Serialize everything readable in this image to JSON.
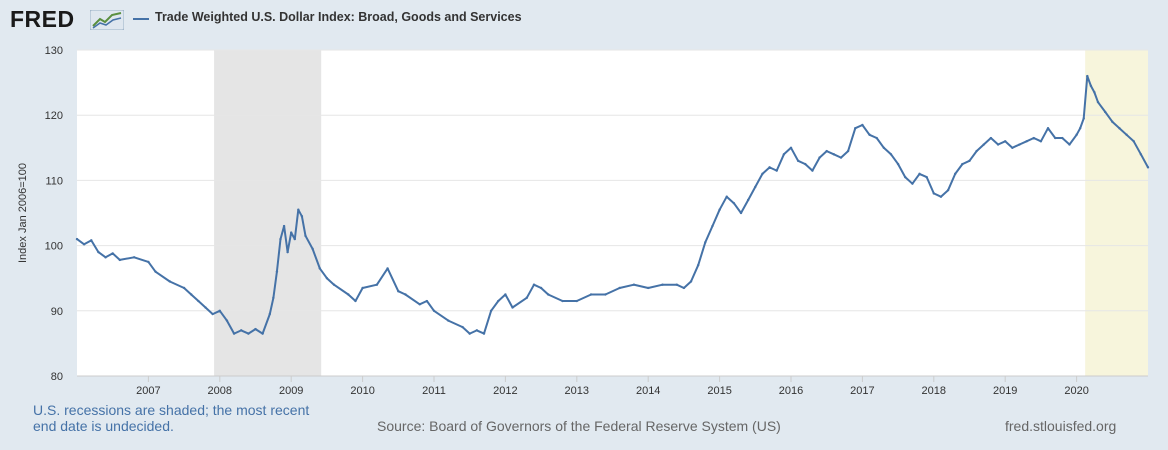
{
  "header": {
    "logo_text": "FRED",
    "logo_icon": "fred-graph-icon",
    "legend_label": "Trade Weighted U.S. Dollar Index: Broad, Goods and Services"
  },
  "footer": {
    "recession_note": "U.S. recessions are shaded; the most recent end date is undecided.",
    "source": "Source: Board of Governors of the Federal Reserve System (US)",
    "site": "fred.stlouisfed.org"
  },
  "colors": {
    "series": "#4572a7",
    "background": "#e1e9f0",
    "plot": "#ffffff",
    "recession": "#e5e5e5",
    "recession_recent": "#f7f5dc"
  },
  "chart_data": {
    "type": "line",
    "title": "",
    "xlabel": "",
    "ylabel": "Index Jan 2006=100",
    "xlim": [
      2006.0,
      2021.0
    ],
    "ylim": [
      80,
      130
    ],
    "x_ticks": [
      2007,
      2008,
      2009,
      2010,
      2011,
      2012,
      2013,
      2014,
      2015,
      2016,
      2017,
      2018,
      2019,
      2020
    ],
    "x_tick_labels": [
      "2007",
      "2008",
      "2009",
      "2010",
      "2011",
      "2012",
      "2013",
      "2014",
      "2015",
      "2016",
      "2017",
      "2018",
      "2019",
      "2020"
    ],
    "y_ticks": [
      80,
      90,
      100,
      110,
      120,
      130
    ],
    "y_tick_labels": [
      "80",
      "90",
      "100",
      "110",
      "120",
      "130"
    ],
    "grid": "horizontal",
    "legend": "top-left",
    "recessions": [
      {
        "start": 2007.92,
        "end": 2009.42
      },
      {
        "start": 2020.12,
        "end": 2021.0
      }
    ],
    "series": [
      {
        "name": "Trade Weighted U.S. Dollar Index: Broad, Goods and Services",
        "x": [
          2006.0,
          2006.1,
          2006.2,
          2006.3,
          2006.4,
          2006.5,
          2006.6,
          2006.8,
          2007.0,
          2007.1,
          2007.3,
          2007.5,
          2007.6,
          2007.7,
          2007.8,
          2007.9,
          2008.0,
          2008.1,
          2008.2,
          2008.3,
          2008.4,
          2008.5,
          2008.6,
          2008.7,
          2008.75,
          2008.8,
          2008.85,
          2008.9,
          2008.95,
          2009.0,
          2009.05,
          2009.1,
          2009.15,
          2009.2,
          2009.3,
          2009.4,
          2009.5,
          2009.6,
          2009.8,
          2009.9,
          2010.0,
          2010.2,
          2010.35,
          2010.5,
          2010.6,
          2010.8,
          2010.9,
          2011.0,
          2011.2,
          2011.4,
          2011.5,
          2011.6,
          2011.7,
          2011.8,
          2011.9,
          2012.0,
          2012.1,
          2012.3,
          2012.4,
          2012.5,
          2012.6,
          2012.8,
          2013.0,
          2013.2,
          2013.4,
          2013.6,
          2013.8,
          2014.0,
          2014.2,
          2014.4,
          2014.5,
          2014.6,
          2014.7,
          2014.8,
          2014.9,
          2015.0,
          2015.1,
          2015.2,
          2015.3,
          2015.4,
          2015.5,
          2015.6,
          2015.7,
          2015.8,
          2015.9,
          2016.0,
          2016.1,
          2016.2,
          2016.3,
          2016.4,
          2016.5,
          2016.6,
          2016.7,
          2016.8,
          2016.9,
          2017.0,
          2017.1,
          2017.2,
          2017.3,
          2017.4,
          2017.5,
          2017.6,
          2017.7,
          2017.8,
          2017.9,
          2018.0,
          2018.1,
          2018.2,
          2018.3,
          2018.4,
          2018.5,
          2018.6,
          2018.7,
          2018.8,
          2018.9,
          2019.0,
          2019.1,
          2019.2,
          2019.3,
          2019.4,
          2019.5,
          2019.6,
          2019.7,
          2019.8,
          2019.9,
          2020.0,
          2020.05,
          2020.1,
          2020.15,
          2020.2,
          2020.25,
          2020.3,
          2020.4,
          2020.5,
          2020.6,
          2020.7,
          2020.8,
          2020.9,
          2021.0
        ],
        "values": [
          101.0,
          100.2,
          100.8,
          99.0,
          98.2,
          98.8,
          97.8,
          98.2,
          97.5,
          96.0,
          94.5,
          93.5,
          92.5,
          91.5,
          90.5,
          89.5,
          90.0,
          88.5,
          86.5,
          87.0,
          86.5,
          87.2,
          86.5,
          89.5,
          92.0,
          96.0,
          101.0,
          103.0,
          99.0,
          102.0,
          101.0,
          105.5,
          104.5,
          101.5,
          99.5,
          96.5,
          95.0,
          94.0,
          92.5,
          91.5,
          93.5,
          94.0,
          96.5,
          93.0,
          92.5,
          91.0,
          91.5,
          90.0,
          88.5,
          87.5,
          86.5,
          87.0,
          86.5,
          90.0,
          91.5,
          92.5,
          90.5,
          92.0,
          94.0,
          93.5,
          92.5,
          91.5,
          91.5,
          92.5,
          92.5,
          93.5,
          94.0,
          93.5,
          94.0,
          94.0,
          93.5,
          94.5,
          97.0,
          100.5,
          103.0,
          105.5,
          107.5,
          106.5,
          105.0,
          107.0,
          109.0,
          111.0,
          112.0,
          111.5,
          114.0,
          115.0,
          113.0,
          112.5,
          111.5,
          113.5,
          114.5,
          114.0,
          113.5,
          114.5,
          118.0,
          118.5,
          117.0,
          116.5,
          115.0,
          114.0,
          112.5,
          110.5,
          109.5,
          111.0,
          110.5,
          108.0,
          107.5,
          108.5,
          111.0,
          112.5,
          113.0,
          114.5,
          115.5,
          116.5,
          115.5,
          116.0,
          115.0,
          115.5,
          116.0,
          116.5,
          116.0,
          118.0,
          116.5,
          116.5,
          115.5,
          117.0,
          118.0,
          119.5,
          126.0,
          124.5,
          123.5,
          122.0,
          120.5,
          119.0,
          118.0,
          117.0,
          116.0,
          114.0,
          112.0
        ]
      }
    ]
  }
}
